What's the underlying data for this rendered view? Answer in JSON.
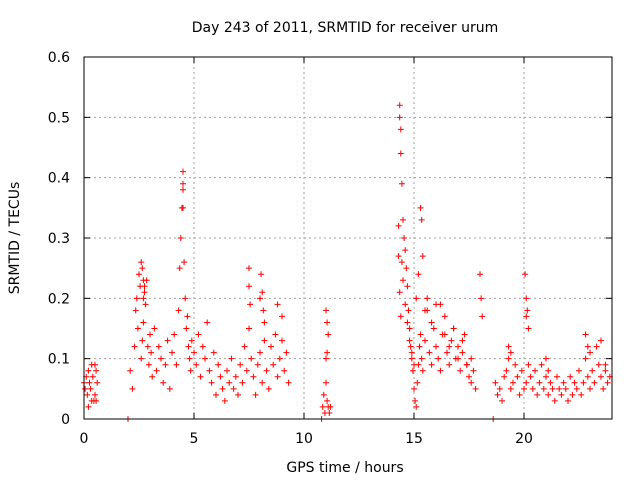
{
  "chart_data": {
    "type": "scatter",
    "title": "Day 243 of 2011, SRMTID for receiver urum",
    "xlabel": "GPS time / hours",
    "ylabel": "SRMTID / TECUs",
    "xlim": [
      0,
      24
    ],
    "ylim": [
      0,
      0.6
    ],
    "xticks": [
      0,
      5,
      10,
      15,
      20
    ],
    "xtick_labels": [
      "0",
      "5",
      "10",
      "15",
      "20"
    ],
    "yticks": [
      0,
      0.1,
      0.2,
      0.3,
      0.4,
      0.5,
      0.6
    ],
    "ytick_labels": [
      "0",
      "0.1",
      "0.2",
      "0.3",
      "0.4",
      "0.5",
      "0.6"
    ],
    "grid": true,
    "marker": "plus",
    "color": "#ff0000",
    "series": [
      {
        "name": "SRMTID",
        "x": [
          0.0,
          0.05,
          0.1,
          0.15,
          0.2,
          0.25,
          0.3,
          0.35,
          0.4,
          0.45,
          0.5,
          0.55,
          0.6,
          0.2,
          0.35,
          0.5,
          0.55,
          2.0,
          2.1,
          2.2,
          2.3,
          2.35,
          2.4,
          2.45,
          2.5,
          2.55,
          2.6,
          2.65,
          2.7,
          2.75,
          2.8,
          2.85,
          2.9,
          2.95,
          3.0,
          3.05,
          3.1,
          3.2,
          3.3,
          3.4,
          3.5,
          3.6,
          3.7,
          3.8,
          3.9,
          4.0,
          4.1,
          4.2,
          4.3,
          4.35,
          4.4,
          4.45,
          4.5,
          4.5,
          4.5,
          4.5,
          4.55,
          4.6,
          4.65,
          4.7,
          4.75,
          4.8,
          4.85,
          4.9,
          5.0,
          5.1,
          5.2,
          5.3,
          5.4,
          5.5,
          5.6,
          5.7,
          5.8,
          5.9,
          6.0,
          6.1,
          6.2,
          6.3,
          6.4,
          6.5,
          6.6,
          6.7,
          6.8,
          6.9,
          7.0,
          7.1,
          7.2,
          7.3,
          7.4,
          7.5,
          7.6,
          7.7,
          7.8,
          7.9,
          8.0,
          8.1,
          8.2,
          8.3,
          8.4,
          8.5,
          8.6,
          8.7,
          8.8,
          8.9,
          9.0,
          9.1,
          9.2,
          9.3,
          7.5,
          7.5,
          7.55,
          8.0,
          8.05,
          8.1,
          8.15,
          8.2,
          8.8,
          9.0,
          2.6,
          2.65,
          2.7,
          2.7,
          2.75,
          10.8,
          10.85,
          10.9,
          10.95,
          11.0,
          11.05,
          11.1,
          11.15,
          11.2,
          11.0,
          11.05,
          11.1,
          11.0,
          11.05,
          14.3,
          14.3,
          14.35,
          14.35,
          14.4,
          14.4,
          14.45,
          14.5,
          14.55,
          14.6,
          14.65,
          14.7,
          14.75,
          14.8,
          14.85,
          14.9,
          14.95,
          15.0,
          15.05,
          15.1,
          15.15,
          15.2,
          15.25,
          15.3,
          15.35,
          15.4,
          15.5,
          15.6,
          15.7,
          15.8,
          15.9,
          16.0,
          16.1,
          16.2,
          16.3,
          16.4,
          16.5,
          16.6,
          16.7,
          16.8,
          16.9,
          17.0,
          17.1,
          17.2,
          17.3,
          17.4,
          17.5,
          17.6,
          17.7,
          17.8,
          14.35,
          14.4,
          14.45,
          14.5,
          14.6,
          14.7,
          14.8,
          14.9,
          15.0,
          15.1,
          15.2,
          15.3,
          15.35,
          15.4,
          15.5,
          15.6,
          15.8,
          16.0,
          16.2,
          16.4,
          16.6,
          16.8,
          17.0,
          17.2,
          17.4,
          17.6,
          18.0,
          18.05,
          18.1,
          18.6,
          18.7,
          18.8,
          18.9,
          19.0,
          19.1,
          19.2,
          19.3,
          19.4,
          19.5,
          19.6,
          19.7,
          19.8,
          19.9,
          20.0,
          20.1,
          20.2,
          20.3,
          20.4,
          20.5,
          20.6,
          20.7,
          20.8,
          20.9,
          21.0,
          21.1,
          21.2,
          21.3,
          21.4,
          21.5,
          21.6,
          21.7,
          21.8,
          21.9,
          22.0,
          22.1,
          22.2,
          22.3,
          22.4,
          22.5,
          22.6,
          22.7,
          22.8,
          22.9,
          23.0,
          23.1,
          23.2,
          23.3,
          23.4,
          23.5,
          23.6,
          23.7,
          23.8,
          23.9,
          20.05,
          20.1,
          20.15,
          20.2,
          20.1,
          19.3,
          19.4,
          22.8,
          22.9,
          23.0,
          21.0,
          21.1,
          23.5,
          23.7
        ],
        "y": [
          0.06,
          0.05,
          0.07,
          0.04,
          0.08,
          0.06,
          0.05,
          0.09,
          0.07,
          0.03,
          0.04,
          0.08,
          0.06,
          0.02,
          0.03,
          0.09,
          0.03,
          0.0,
          0.08,
          0.05,
          0.12,
          0.18,
          0.2,
          0.15,
          0.24,
          0.22,
          0.1,
          0.13,
          0.16,
          0.21,
          0.19,
          0.23,
          0.12,
          0.09,
          0.14,
          0.11,
          0.07,
          0.15,
          0.08,
          0.12,
          0.1,
          0.06,
          0.09,
          0.13,
          0.05,
          0.11,
          0.14,
          0.09,
          0.18,
          0.25,
          0.3,
          0.35,
          0.38,
          0.41,
          0.39,
          0.35,
          0.26,
          0.2,
          0.15,
          0.17,
          0.12,
          0.1,
          0.08,
          0.13,
          0.11,
          0.09,
          0.14,
          0.07,
          0.12,
          0.1,
          0.16,
          0.08,
          0.06,
          0.11,
          0.04,
          0.09,
          0.07,
          0.05,
          0.03,
          0.08,
          0.06,
          0.1,
          0.05,
          0.07,
          0.04,
          0.09,
          0.06,
          0.12,
          0.08,
          0.15,
          0.1,
          0.07,
          0.04,
          0.09,
          0.11,
          0.06,
          0.13,
          0.08,
          0.05,
          0.12,
          0.09,
          0.14,
          0.07,
          0.1,
          0.13,
          0.08,
          0.11,
          0.06,
          0.25,
          0.22,
          0.19,
          0.2,
          0.24,
          0.21,
          0.18,
          0.16,
          0.19,
          0.17,
          0.26,
          0.25,
          0.2,
          0.23,
          0.22,
          0.0,
          0.02,
          0.04,
          0.01,
          0.06,
          0.03,
          0.02,
          0.01,
          0.02,
          0.18,
          0.16,
          0.14,
          0.1,
          0.11,
          0.32,
          0.27,
          0.52,
          0.5,
          0.48,
          0.44,
          0.39,
          0.33,
          0.3,
          0.28,
          0.25,
          0.22,
          0.18,
          0.15,
          0.12,
          0.1,
          0.08,
          0.05,
          0.03,
          0.02,
          0.06,
          0.09,
          0.12,
          0.14,
          0.1,
          0.08,
          0.13,
          0.18,
          0.11,
          0.09,
          0.15,
          0.12,
          0.1,
          0.08,
          0.14,
          0.17,
          0.11,
          0.09,
          0.13,
          0.15,
          0.1,
          0.12,
          0.08,
          0.11,
          0.14,
          0.09,
          0.07,
          0.1,
          0.08,
          0.05,
          0.21,
          0.17,
          0.26,
          0.23,
          0.19,
          0.16,
          0.13,
          0.11,
          0.09,
          0.2,
          0.24,
          0.35,
          0.33,
          0.27,
          0.18,
          0.2,
          0.16,
          0.19,
          0.19,
          0.14,
          0.12,
          0.15,
          0.1,
          0.13,
          0.09,
          0.06,
          0.24,
          0.2,
          0.17,
          0.0,
          0.06,
          0.04,
          0.05,
          0.03,
          0.07,
          0.08,
          0.1,
          0.05,
          0.06,
          0.09,
          0.07,
          0.04,
          0.08,
          0.05,
          0.06,
          0.09,
          0.07,
          0.05,
          0.08,
          0.04,
          0.06,
          0.09,
          0.05,
          0.07,
          0.04,
          0.06,
          0.05,
          0.03,
          0.07,
          0.05,
          0.04,
          0.06,
          0.05,
          0.03,
          0.07,
          0.04,
          0.06,
          0.05,
          0.08,
          0.04,
          0.06,
          0.1,
          0.07,
          0.05,
          0.08,
          0.06,
          0.12,
          0.09,
          0.07,
          0.05,
          0.08,
          0.06,
          0.07,
          0.24,
          0.2,
          0.18,
          0.15,
          0.17,
          0.12,
          0.11,
          0.14,
          0.12,
          0.11,
          0.1,
          0.08,
          0.13,
          0.09
        ]
      }
    ]
  }
}
